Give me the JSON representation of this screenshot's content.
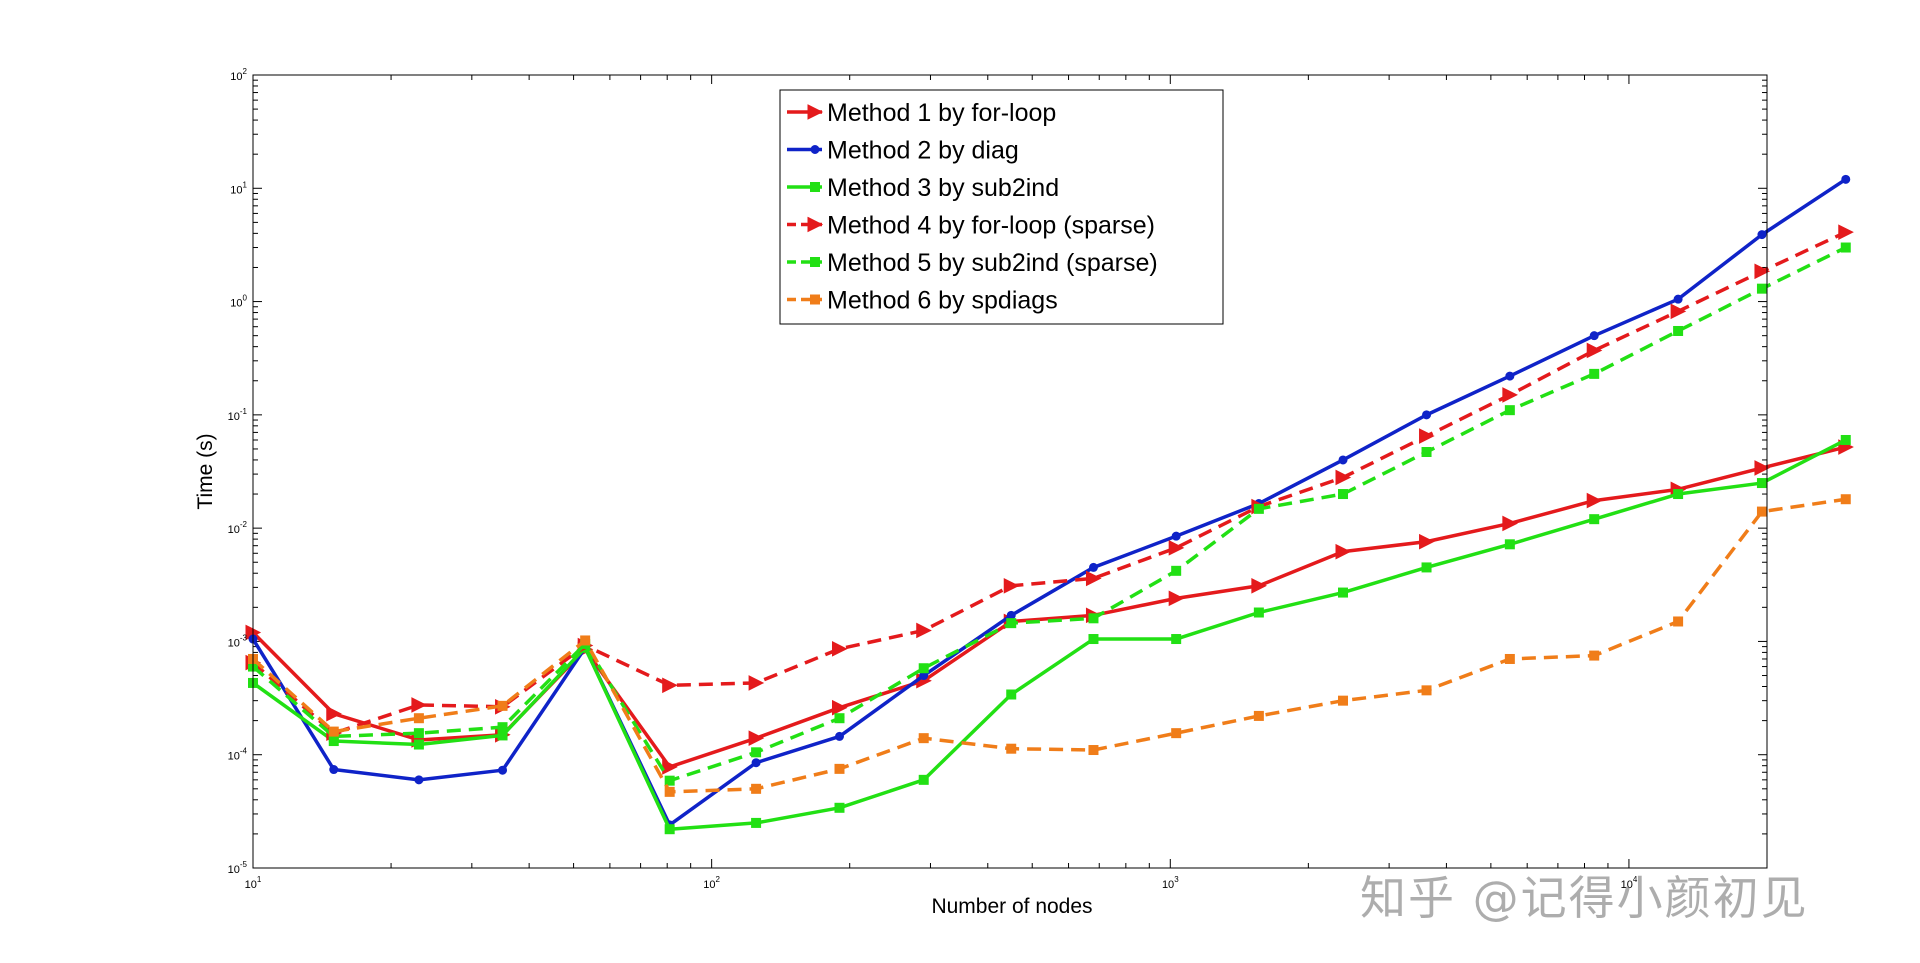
{
  "watermark": "知乎 @记得小颜初见",
  "chart_data": {
    "type": "line",
    "title": "",
    "xlabel": "Number of nodes",
    "ylabel": "Time (s)",
    "xscale": "log",
    "yscale": "log",
    "xlim": [
      10,
      20000
    ],
    "ylim": [
      1e-05,
      100
    ],
    "x_ticks": [
      {
        "value": 10,
        "base": "10",
        "exp": "1"
      },
      {
        "value": 100,
        "base": "10",
        "exp": "2"
      },
      {
        "value": 1000,
        "base": "10",
        "exp": "3"
      },
      {
        "value": 10000,
        "base": "10",
        "exp": "4"
      }
    ],
    "y_ticks": [
      {
        "value": 1e-05,
        "base": "10",
        "exp": "-5"
      },
      {
        "value": 0.0001,
        "base": "10",
        "exp": "-4"
      },
      {
        "value": 0.001,
        "base": "10",
        "exp": "-3"
      },
      {
        "value": 0.01,
        "base": "10",
        "exp": "-2"
      },
      {
        "value": 0.1,
        "base": "10",
        "exp": "-1"
      },
      {
        "value": 1,
        "base": "10",
        "exp": "0"
      },
      {
        "value": 10,
        "base": "10",
        "exp": "1"
      },
      {
        "value": 100,
        "base": "10",
        "exp": "2"
      }
    ],
    "legend_position": "top-center",
    "x": [
      10,
      15,
      23,
      35,
      53,
      81,
      125,
      190,
      290,
      450,
      680,
      1030,
      1560,
      2380,
      3620,
      5500,
      8400,
      12800,
      19500,
      29700
    ],
    "series": [
      {
        "name": "Method 1 by for-loop",
        "color": "#e41a1c",
        "dash": "solid",
        "marker": "triangle-right",
        "values": [
          0.0012,
          0.00023,
          0.000135,
          0.00015,
          0.00085,
          7.8e-05,
          0.00014,
          0.00026,
          0.00045,
          0.0015,
          0.0017,
          0.0024,
          0.0031,
          0.0062,
          0.0076,
          0.011,
          0.0175,
          0.022,
          0.034,
          0.052
        ]
      },
      {
        "name": "Method 2 by diag",
        "color": "#0f23c8",
        "dash": "solid",
        "marker": "circle",
        "values": [
          0.00105,
          7.4e-05,
          6e-05,
          7.3e-05,
          0.00088,
          2.4e-05,
          8.5e-05,
          0.000145,
          0.0005,
          0.0017,
          0.0045,
          0.0085,
          0.0165,
          0.04,
          0.1,
          0.22,
          0.5,
          1.05,
          3.9,
          12
        ]
      },
      {
        "name": "Method 3 by sub2ind",
        "color": "#22e014",
        "dash": "solid",
        "marker": "square",
        "values": [
          0.00043,
          0.000132,
          0.000123,
          0.000148,
          0.00088,
          2.2e-05,
          2.5e-05,
          3.4e-05,
          6e-05,
          0.00034,
          0.00105,
          0.00105,
          0.0018,
          0.0027,
          0.0045,
          0.0072,
          0.012,
          0.02,
          0.025,
          0.06
        ]
      },
      {
        "name": "Method 4 by for-loop (sparse)",
        "color": "#e41a1c",
        "dash": "dashed",
        "marker": "triangle-right",
        "values": [
          0.00065,
          0.000155,
          0.000275,
          0.000265,
          0.00092,
          0.00041,
          0.00043,
          0.00086,
          0.00125,
          0.0031,
          0.0036,
          0.0067,
          0.0155,
          0.028,
          0.065,
          0.15,
          0.37,
          0.82,
          1.85,
          4.1
        ]
      },
      {
        "name": "Method 5 by sub2ind (sparse)",
        "color": "#22e014",
        "dash": "dashed",
        "marker": "square",
        "values": [
          0.0006,
          0.000145,
          0.000155,
          0.000175,
          0.00095,
          5.9e-05,
          0.000105,
          0.00021,
          0.00058,
          0.00145,
          0.0016,
          0.0042,
          0.0148,
          0.02,
          0.047,
          0.11,
          0.23,
          0.55,
          1.3,
          3.0
        ]
      },
      {
        "name": "Method 6 by spdiags",
        "color": "#f07d19",
        "dash": "dashed",
        "marker": "square",
        "values": [
          0.0007,
          0.00016,
          0.00021,
          0.00027,
          0.00102,
          4.7e-05,
          5e-05,
          7.5e-05,
          0.00014,
          0.000113,
          0.00011,
          0.000155,
          0.00022,
          0.0003,
          0.00037,
          0.0007,
          0.00075,
          0.0015,
          0.014,
          0.018
        ]
      }
    ]
  }
}
